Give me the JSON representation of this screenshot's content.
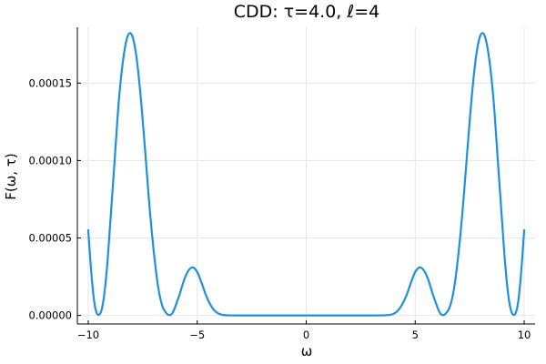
{
  "chart_data": {
    "type": "line",
    "title": "CDD: τ=4.0, ℓ=4",
    "xlabel": "ω",
    "ylabel": "F(ω, τ)",
    "xlim": [
      -10.5,
      10.5
    ],
    "ylim": [
      -5.5e-06,
      0.000186
    ],
    "xticks": [
      -10,
      -5,
      0,
      5,
      10
    ],
    "xtick_labels": [
      "−10",
      "−5",
      "0",
      "5",
      "10"
    ],
    "yticks": [
      0,
      5e-05,
      0.0001,
      0.00015
    ],
    "ytick_labels": [
      "0.00000",
      "0.00005",
      "0.00010",
      "0.00015"
    ],
    "grid": true,
    "legend": "none",
    "series": [
      {
        "color": "#1f8fe0",
        "x": [
          -10,
          -9.9,
          -9.8,
          -9.7,
          -9.6,
          -9.5,
          -9.4,
          -9.3,
          -9.2,
          -9.1,
          -9.0,
          -8.8,
          -8.6,
          -8.4,
          -8.2,
          -8.0,
          -7.8,
          -7.6,
          -7.4,
          -7.2,
          -7.0,
          -6.8,
          -6.6,
          -6.4,
          -6.3,
          -6.2,
          -6.1,
          -6.0,
          -5.8,
          -5.6,
          -5.4,
          -5.2,
          -5.0,
          -4.8,
          -4.6,
          -4.4,
          -4.2,
          -4.0,
          -3.8,
          -3.6,
          -3.4,
          -3.2,
          -3.0,
          -2.5,
          -2.0,
          -1.0,
          0,
          1.0,
          2.0,
          2.5,
          3.0,
          3.2,
          3.4,
          3.6,
          3.8,
          4.0,
          4.2,
          4.4,
          4.6,
          4.8,
          5.0,
          5.2,
          5.4,
          5.6,
          5.8,
          6.0,
          6.1,
          6.2,
          6.3,
          6.4,
          6.6,
          6.8,
          7.0,
          7.2,
          7.4,
          7.6,
          7.8,
          8.0,
          8.2,
          8.4,
          8.6,
          8.8,
          9.0,
          9.1,
          9.2,
          9.3,
          9.4,
          9.5,
          9.6,
          9.7,
          9.8,
          9.9,
          10
        ],
        "y": [
          5.5e-05,
          3.5e-05,
          1.8e-05,
          6.5e-06,
          1.2e-06,
          5e-07,
          3e-06,
          1e-05,
          2.2e-05,
          3.8e-05,
          5.8e-05,
          9.8e-05,
          0.000138,
          0.000165,
          0.00018,
          0.000181,
          0.000168,
          0.000142,
          0.000108,
          7.2e-05,
          4.2e-05,
          1.9e-05,
          6e-06,
          1.2e-06,
          3e-07,
          5e-07,
          2.5e-06,
          6e-06,
          1.4e-05,
          2.3e-05,
          2.9e-05,
          3.1e-05,
          2.8e-05,
          2.1e-05,
          1.3e-05,
          7e-06,
          3e-06,
          1e-06,
          3e-07,
          1e-07,
          5e-08,
          3e-08,
          2e-08,
          1e-08,
          0.0,
          0.0,
          0.0,
          0.0,
          0.0,
          1e-08,
          2e-08,
          3e-08,
          5e-08,
          1e-07,
          3e-07,
          1e-06,
          3e-06,
          7e-06,
          1.3e-05,
          2.1e-05,
          2.8e-05,
          3.1e-05,
          2.9e-05,
          2.3e-05,
          1.4e-05,
          6e-06,
          2.5e-06,
          5e-07,
          3e-07,
          1.2e-06,
          6e-06,
          1.9e-05,
          4.2e-05,
          7.2e-05,
          0.000108,
          0.000142,
          0.000168,
          0.000181,
          0.00018,
          0.000165,
          0.000138,
          9.8e-05,
          5.8e-05,
          3.8e-05,
          2.2e-05,
          1e-05,
          3e-06,
          5e-07,
          1.2e-06,
          6.5e-06,
          1.8e-05,
          3.5e-05,
          5.5e-05
        ]
      }
    ]
  }
}
